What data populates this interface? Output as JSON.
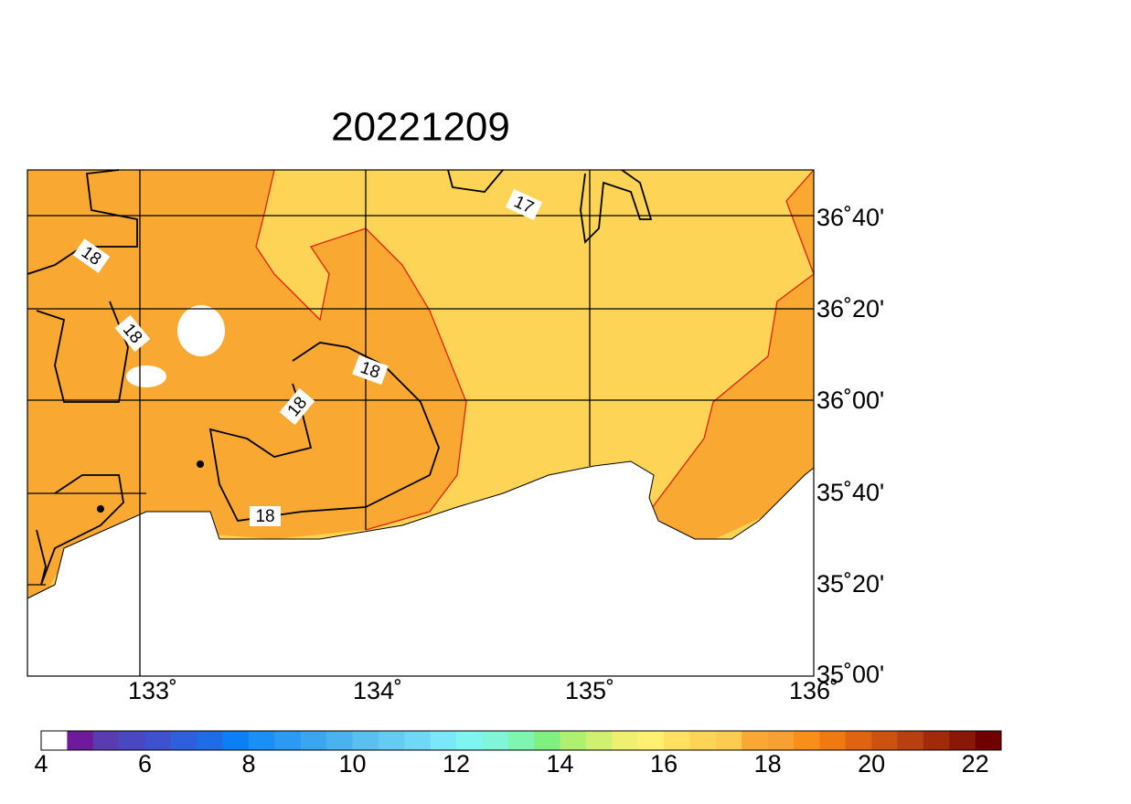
{
  "title": "20221209",
  "lon_labels": [
    "133˚",
    "134˚",
    "135˚",
    "136˚"
  ],
  "lat_labels": [
    "36˚40'",
    "36˚20'",
    "36˚00'",
    "35˚40'",
    "35˚20'",
    "35˚00'"
  ],
  "contour_labels": [
    18,
    18,
    18,
    18,
    18,
    17
  ],
  "colorbar": {
    "range": [
      4,
      22.5
    ],
    "ticks": [
      4,
      6,
      8,
      10,
      12,
      14,
      16,
      18,
      20,
      22
    ],
    "colors": [
      "#ffffff",
      "#6f1a9a",
      "#5a3bb0",
      "#4a47c2",
      "#3e52cf",
      "#2e5fdc",
      "#1f6de6",
      "#0b80f5",
      "#1a8ff5",
      "#2a9af2",
      "#3aa6f0",
      "#4ab2ef",
      "#5ac0f0",
      "#64ccf2",
      "#6ed8f6",
      "#7ae8f8",
      "#7ef5f0",
      "#80f5d8",
      "#7ef5b0",
      "#80f080",
      "#b0f070",
      "#d0f070",
      "#f0f070",
      "#fff070",
      "#ffe060",
      "#fed456",
      "#fdcb50",
      "#f9a832",
      "#f9a032",
      "#f98e1a",
      "#f07a10",
      "#e06410",
      "#cc5212",
      "#b84010",
      "#a02a0a",
      "#8a1808",
      "#700000"
    ]
  }
}
